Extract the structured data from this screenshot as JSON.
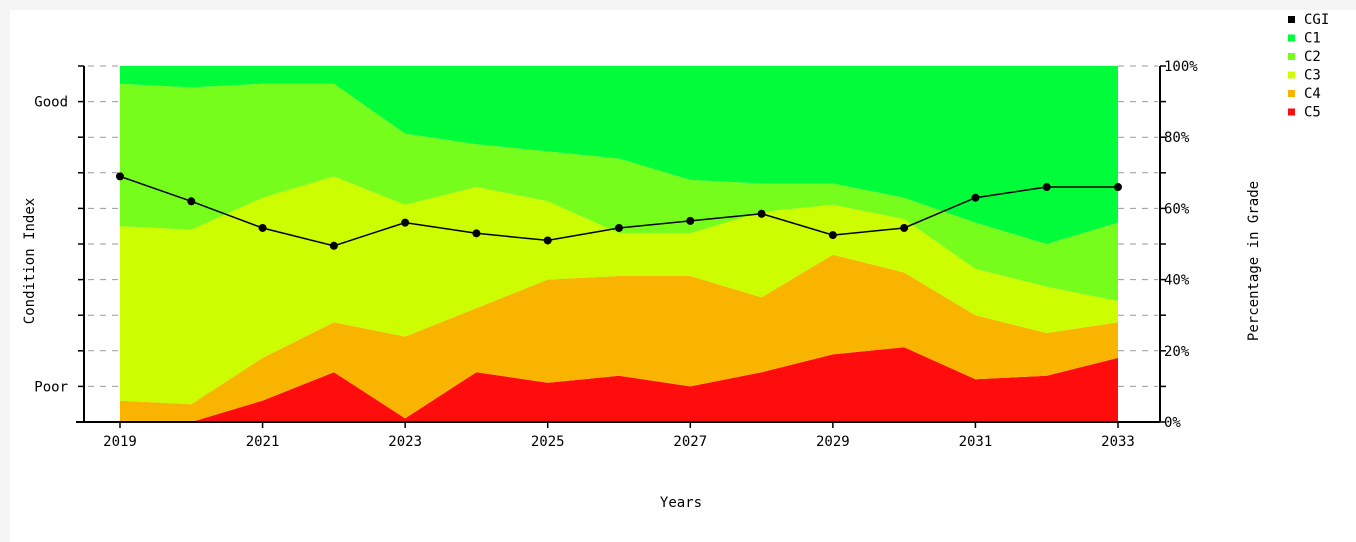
{
  "chart_data": {
    "type": "area",
    "x": [
      2019,
      2020,
      2021,
      2022,
      2023,
      2024,
      2025,
      2026,
      2027,
      2028,
      2029,
      2030,
      2031,
      2032,
      2033
    ],
    "x_tick_labels": [
      "2019",
      "2021",
      "2023",
      "2025",
      "2027",
      "2029",
      "2031",
      "2033"
    ],
    "xlabel": "Years",
    "left_axis": {
      "label": "Condition Index",
      "tick_labels": [
        {
          "text": "Good",
          "value": 90
        },
        {
          "text": "Poor",
          "value": 10
        }
      ],
      "ylim": [
        0,
        100
      ]
    },
    "right_axis": {
      "label": "Percentage in Grade",
      "tick_labels": [
        "0%",
        "20%",
        "40%",
        "60%",
        "80%",
        "100%"
      ],
      "ylim": [
        0,
        100
      ]
    },
    "grid": "dashed-horizontal-margins",
    "legend_position": "top-right",
    "series": [
      {
        "name": "C5",
        "color": "#ff0d0d",
        "values": [
          0,
          0,
          6,
          14,
          1,
          14,
          11,
          13,
          10,
          14,
          19,
          21,
          12,
          13,
          18
        ]
      },
      {
        "name": "C4",
        "color": "#f9b400",
        "values": [
          6,
          5,
          12,
          14,
          23,
          18,
          29,
          28,
          31,
          21,
          28,
          21,
          18,
          12,
          10
        ]
      },
      {
        "name": "C3",
        "color": "#ccfd00",
        "values": [
          49,
          49,
          45,
          41,
          37,
          34,
          22,
          12,
          12,
          24,
          14,
          15,
          13,
          13,
          6
        ]
      },
      {
        "name": "C2",
        "color": "#77fd1c",
        "values": [
          40,
          40,
          32,
          26,
          20,
          12,
          14,
          21,
          15,
          8,
          6,
          6,
          13,
          12,
          22
        ]
      },
      {
        "name": "C1",
        "color": "#01fc3a",
        "values": [
          5,
          6,
          5,
          5,
          19,
          22,
          24,
          26,
          32,
          33,
          33,
          37,
          44,
          50,
          44
        ]
      }
    ],
    "line_series": {
      "name": "CGI",
      "color": "#000000",
      "values": [
        69,
        62,
        54.5,
        49.5,
        56,
        53,
        51,
        54.5,
        56.5,
        58.5,
        52.5,
        54.5,
        63,
        66,
        66
      ]
    },
    "legend": [
      {
        "name": "CGI",
        "color": "#000000"
      },
      {
        "name": "C1",
        "color": "#01fc3a"
      },
      {
        "name": "C2",
        "color": "#77fd1c"
      },
      {
        "name": "C3",
        "color": "#ccfd00"
      },
      {
        "name": "C4",
        "color": "#f9b400"
      },
      {
        "name": "C5",
        "color": "#ff0d0d"
      }
    ]
  }
}
